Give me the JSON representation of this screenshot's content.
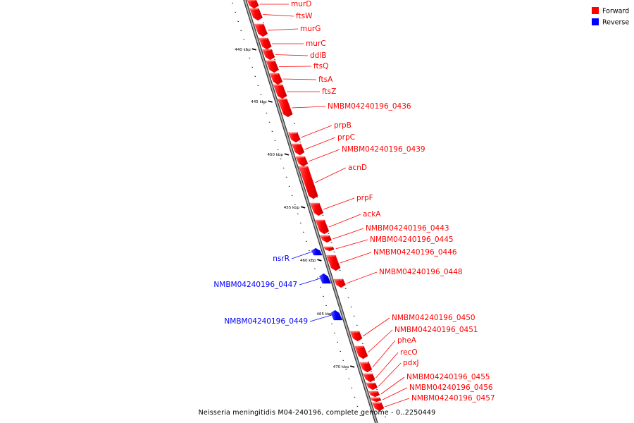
{
  "caption": "Neisseria meningitidis M04-240196, complete genome - 0..2250449",
  "legend": [
    {
      "label": "Forward",
      "color": "#ff0000"
    },
    {
      "label": "Reverse",
      "color": "#0000ff"
    }
  ],
  "colors": {
    "forward": "#ff0000",
    "reverse": "#0000ff",
    "backbone": "#7a7a7a"
  },
  "ticks": [
    "440 kbp",
    "445 kbp",
    "450 kbp",
    "455 kbp",
    "460 kbp",
    "465 kbp",
    "470 kbp"
  ],
  "genes_forward": [
    "murD",
    "ftsW",
    "murG",
    "murC",
    "ddlB",
    "ftsQ",
    "ftsA",
    "ftsZ",
    "NMBM04240196_0436",
    "prpB",
    "prpC",
    "NMBM04240196_0439",
    "acnD",
    "prpF",
    "ackA",
    "NMBM04240196_0443",
    "NMBM04240196_0445",
    "NMBM04240196_0446",
    "NMBM04240196_0448",
    "NMBM04240196_0450",
    "NMBM04240196_0451",
    "pheA",
    "recO",
    "pdxJ",
    "NMBM04240196_0455",
    "NMBM04240196_0456",
    "NMBM04240196_0457"
  ],
  "genes_reverse": [
    "nsrR",
    "NMBM04240196_0447",
    "NMBM04240196_0449"
  ]
}
